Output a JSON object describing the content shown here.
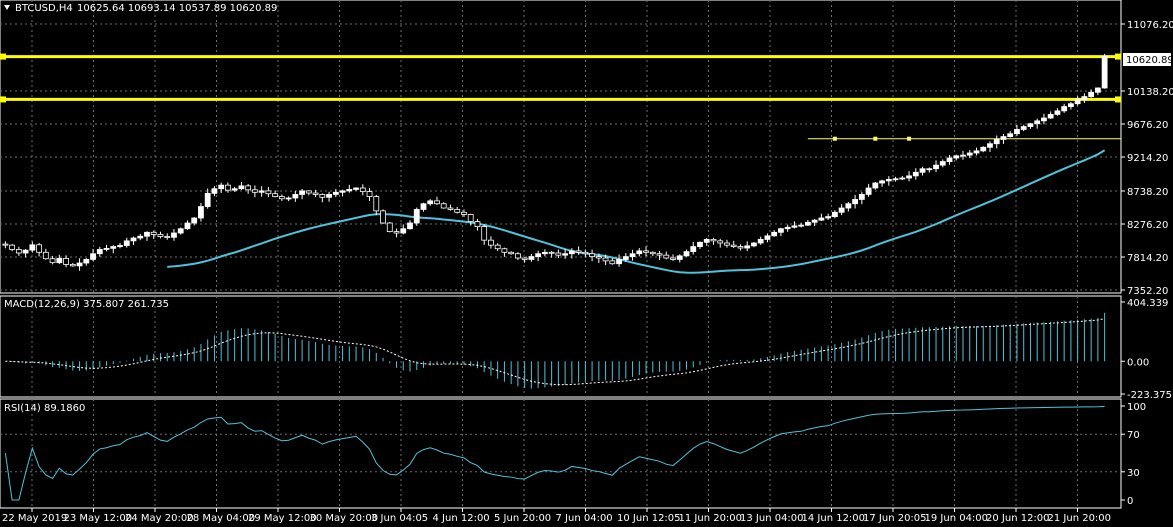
{
  "header": {
    "symbol_label": "BTCUSD,H4",
    "ohlc_label": "10625.64 10693.14 10537.89 10620.89"
  },
  "colors": {
    "background": "#000000",
    "grid": "#6e6e6e",
    "bull_candle": "#ffffff",
    "bear_candle": "#000000",
    "candle_outline": "#ffffff",
    "ma_line": "#4fc3da",
    "macd_hist": "#4fc3da",
    "macd_signal": "#ffffff",
    "rsi_line": "#4fc3da",
    "level_line": "#ffff00",
    "level_small_line": "#ffff66",
    "price_tag_bg": "#ffffff",
    "price_tag_text": "#000000"
  },
  "chart_data": [
    {
      "type": "candlestick",
      "panel": "price",
      "timeframe": "H4",
      "ylim": [
        7352.2,
        11300
      ],
      "yticks": [
        "11076.20",
        "10138.20",
        "9676.20",
        "9214.20",
        "8738.20",
        "8276.20",
        "7814.20",
        "7352.20"
      ],
      "current_price": "10620.89",
      "levels": [
        10620,
        10020
      ],
      "level_partial": {
        "value": 9470,
        "from_index": 119,
        "to_index": 135
      },
      "level_markers": [
        123,
        129,
        134
      ],
      "ma_period_hint": "moving average",
      "closes": [
        7980,
        7920,
        7870,
        7910,
        7985,
        7880,
        7790,
        7735,
        7795,
        7710,
        7690,
        7730,
        7780,
        7860,
        7920,
        7935,
        7960,
        7975,
        8040,
        8080,
        8105,
        8160,
        8130,
        8100,
        8090,
        8150,
        8210,
        8290,
        8360,
        8520,
        8705,
        8770,
        8820,
        8750,
        8770,
        8810,
        8755,
        8720,
        8740,
        8700,
        8660,
        8630,
        8640,
        8690,
        8740,
        8710,
        8690,
        8650,
        8690,
        8720,
        8740,
        8760,
        8780,
        8730,
        8660,
        8460,
        8290,
        8170,
        8150,
        8210,
        8290,
        8480,
        8560,
        8600,
        8560,
        8500,
        8480,
        8440,
        8410,
        8310,
        8240,
        8050,
        7980,
        7930,
        7880,
        7860,
        7800,
        7780,
        7820,
        7860,
        7880,
        7870,
        7840,
        7860,
        7900,
        7880,
        7860,
        7820,
        7800,
        7760,
        7720,
        7780,
        7820,
        7860,
        7900,
        7880,
        7860,
        7840,
        7800,
        7780,
        7830,
        7890,
        7960,
        8020,
        8060,
        8040,
        8010,
        7980,
        7960,
        7940,
        7970,
        8010,
        8060,
        8110,
        8160,
        8210,
        8230,
        8250,
        8260,
        8300,
        8330,
        8360,
        8380,
        8440,
        8500,
        8560,
        8620,
        8690,
        8780,
        8850,
        8880,
        8900,
        8910,
        8920,
        8950,
        9000,
        9050,
        9050,
        9100,
        9150,
        9200,
        9230,
        9240,
        9270,
        9300,
        9350,
        9400,
        9460,
        9500,
        9540,
        9600,
        9640,
        9680,
        9720,
        9760,
        9810,
        9860,
        9920,
        9960,
        10020,
        10060,
        10120,
        10180,
        10620
      ]
    },
    {
      "type": "line",
      "panel": "macd",
      "title": "MACD(12,26,9) 375.807 261.735",
      "ylim": [
        -223.375,
        404.339
      ],
      "yticks": [
        "404.339",
        "0.00",
        "-223.375"
      ]
    },
    {
      "type": "line",
      "panel": "rsi",
      "title": "RSI(14) 89.1860",
      "ylim": [
        0,
        100
      ],
      "yticks": [
        "100",
        "70",
        "30",
        "0"
      ]
    },
    {
      "type": "time_axis",
      "xticks": [
        "22 May 2019",
        "23 May 12:00",
        "24 May 20:00",
        "28 May 04:00",
        "29 May 12:00",
        "30 May 20:00",
        "3 Jun 04:05",
        "4 Jun 12:00",
        "5 Jun 20:00",
        "7 Jun 04:00",
        "10 Jun 12:05",
        "11 Jun 20:00",
        "13 Jun 04:00",
        "14 Jun 12:00",
        "17 Jun 20:05",
        "19 Jun 04:00",
        "20 Jun 12:00",
        "21 Jun 20:00"
      ]
    }
  ]
}
